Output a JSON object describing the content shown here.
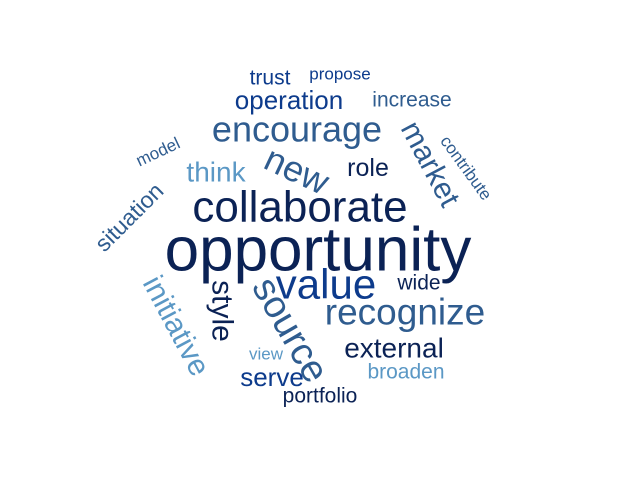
{
  "word_cloud": {
    "palette": {
      "navy": "#0b2255",
      "blue": "#0d3b8c",
      "steel": "#2f5c8f",
      "light": "#5b98c5"
    },
    "words": [
      {
        "text": "opportunity",
        "color": "#0b2255"
      },
      {
        "text": "collaborate",
        "color": "#0b2255"
      },
      {
        "text": "value",
        "color": "#0d3b8c"
      },
      {
        "text": "source",
        "color": "#2f5c8f"
      },
      {
        "text": "recognize",
        "color": "#2f5c8f"
      },
      {
        "text": "encourage",
        "color": "#2f5c8f"
      },
      {
        "text": "new",
        "color": "#2f5c8f"
      },
      {
        "text": "market",
        "color": "#2f5c8f"
      },
      {
        "text": "initiative",
        "color": "#5b98c5"
      },
      {
        "text": "operation",
        "color": "#0d3b8c"
      },
      {
        "text": "external",
        "color": "#0b2255"
      },
      {
        "text": "style",
        "color": "#0b2255"
      },
      {
        "text": "think",
        "color": "#5b98c5"
      },
      {
        "text": "serve",
        "color": "#0d3b8c"
      },
      {
        "text": "situation",
        "color": "#2f5c8f"
      },
      {
        "text": "role",
        "color": "#0b2255"
      },
      {
        "text": "increase",
        "color": "#2f5c8f"
      },
      {
        "text": "trust",
        "color": "#0d3b8c"
      },
      {
        "text": "portfolio",
        "color": "#0b2255"
      },
      {
        "text": "broaden",
        "color": "#5b98c5"
      },
      {
        "text": "wide",
        "color": "#0b2255"
      },
      {
        "text": "contribute",
        "color": "#2f5c8f"
      },
      {
        "text": "model",
        "color": "#2f5c8f"
      },
      {
        "text": "propose",
        "color": "#0d3b8c"
      },
      {
        "text": "view",
        "color": "#5b98c5"
      }
    ]
  }
}
